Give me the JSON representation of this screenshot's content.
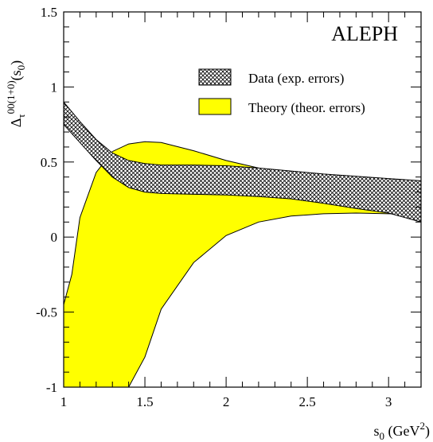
{
  "chart_data": {
    "type": "area",
    "experiment_label": "ALEPH",
    "xlabel_main": "s",
    "xlabel_sub": "0",
    "xlabel_rest": " (GeV",
    "xlabel_sup": "2",
    "xlabel_close": ")",
    "ylabel_main": "Δ",
    "ylabel_sub": "τ",
    "ylabel_sup": "00(1+0)",
    "ylabel_rest": "(s",
    "ylabel_sub2": "0",
    "ylabel_close": ")",
    "xlim": [
      1.0,
      3.2
    ],
    "ylim": [
      -1.0,
      1.5
    ],
    "x_ticks": [
      {
        "value": 1.0,
        "label": "1"
      },
      {
        "value": 1.5,
        "label": "1.5"
      },
      {
        "value": 2.0,
        "label": "2"
      },
      {
        "value": 2.5,
        "label": "2.5"
      },
      {
        "value": 3.0,
        "label": "3"
      }
    ],
    "y_ticks": [
      {
        "value": -1.0,
        "label": "-1"
      },
      {
        "value": -0.5,
        "label": "-0.5"
      },
      {
        "value": 0.0,
        "label": "0"
      },
      {
        "value": 0.5,
        "label": "0.5"
      },
      {
        "value": 1.0,
        "label": "1"
      },
      {
        "value": 1.5,
        "label": "1.5"
      }
    ],
    "legend_position": "top-right",
    "series": [
      {
        "name": "Theory (theor. errors)",
        "fill": "#ffff00",
        "pattern": "solid",
        "x": [
          1.0,
          1.05,
          1.1,
          1.2,
          1.3,
          1.4,
          1.5,
          1.6,
          1.8,
          2.0,
          2.2,
          2.4,
          2.6,
          2.8,
          3.0,
          3.2
        ],
        "upper": [
          -0.45,
          -0.25,
          0.13,
          0.43,
          0.57,
          0.62,
          0.635,
          0.63,
          0.575,
          0.51,
          0.46,
          0.42,
          0.395,
          0.37,
          0.35,
          0.335
        ],
        "lower": [
          -1.0,
          -1.0,
          -1.0,
          -1.0,
          -1.0,
          -1.0,
          -0.8,
          -0.48,
          -0.17,
          0.01,
          0.1,
          0.14,
          0.155,
          0.16,
          0.155,
          0.15
        ]
      },
      {
        "name": "Data (exp. errors)",
        "fill": "#ffffff",
        "pattern": "crosshatch",
        "x": [
          1.0,
          1.1,
          1.2,
          1.3,
          1.4,
          1.5,
          1.6,
          1.8,
          2.0,
          2.2,
          2.4,
          2.6,
          2.8,
          3.0,
          3.2
        ],
        "upper": [
          0.9,
          0.77,
          0.65,
          0.56,
          0.51,
          0.49,
          0.48,
          0.48,
          0.475,
          0.46,
          0.44,
          0.42,
          0.405,
          0.39,
          0.375
        ],
        "lower": [
          0.75,
          0.63,
          0.51,
          0.4,
          0.33,
          0.3,
          0.29,
          0.285,
          0.28,
          0.27,
          0.255,
          0.225,
          0.19,
          0.16,
          0.1
        ]
      }
    ]
  }
}
